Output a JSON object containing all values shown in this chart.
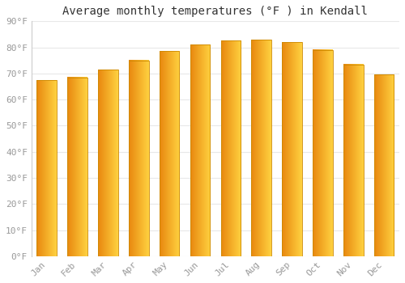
{
  "title": "Average monthly temperatures (°F ) in Kendall",
  "months": [
    "Jan",
    "Feb",
    "Mar",
    "Apr",
    "May",
    "Jun",
    "Jul",
    "Aug",
    "Sep",
    "Oct",
    "Nov",
    "Dec"
  ],
  "values": [
    67.5,
    68.5,
    71.5,
    75.0,
    78.5,
    81.0,
    82.5,
    83.0,
    82.0,
    79.0,
    73.5,
    69.5
  ],
  "bar_color_left": "#E8860A",
  "bar_color_right": "#FFD040",
  "bar_edge_color": "#CC8800",
  "background_color": "#ffffff",
  "plot_bg_color": "#ffffff",
  "grid_color": "#e8e8e8",
  "ylim": [
    0,
    90
  ],
  "yticks": [
    0,
    10,
    20,
    30,
    40,
    50,
    60,
    70,
    80,
    90
  ],
  "ytick_labels": [
    "0°F",
    "10°F",
    "20°F",
    "30°F",
    "40°F",
    "50°F",
    "60°F",
    "70°F",
    "80°F",
    "90°F"
  ],
  "title_fontsize": 10,
  "tick_fontsize": 8,
  "bar_width": 0.65
}
